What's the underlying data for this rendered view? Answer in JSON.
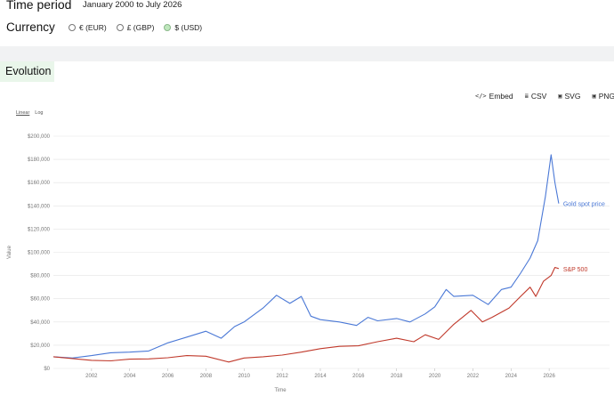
{
  "filters": {
    "time_period_label": "Time period",
    "time_period_value": "January 2000 to July 2026",
    "currency_label": "Currency",
    "currency_options": [
      {
        "label": "€ (EUR)",
        "selected": false
      },
      {
        "label": "£ (GBP)",
        "selected": false
      },
      {
        "label": "$ (USD)",
        "selected": true
      }
    ]
  },
  "section": {
    "tab_label": "Evolution"
  },
  "toolbar": [
    {
      "icon": "code-icon",
      "glyph": "</>",
      "label": "Embed"
    },
    {
      "icon": "database-icon",
      "glyph": "≣",
      "label": "CSV"
    },
    {
      "icon": "image-icon",
      "glyph": "▣",
      "label": "SVG"
    },
    {
      "icon": "image-icon",
      "glyph": "▣",
      "label": "PNG"
    }
  ],
  "scale_toggle": {
    "linear": "Linear",
    "log": "Log",
    "active": "linear"
  },
  "chart_data": {
    "type": "line",
    "xlabel": "Time",
    "ylabel": "Value",
    "xlim": [
      2000,
      2026.6
    ],
    "ylim": [
      0,
      200000
    ],
    "x_ticks": [
      "2002",
      "2004",
      "2006",
      "2008",
      "2010",
      "2012",
      "2014",
      "2016",
      "2018",
      "2020",
      "2022",
      "2024",
      "2026"
    ],
    "y_ticks": [
      "$0",
      "$20,000",
      "$40,000",
      "$60,000",
      "$80,000",
      "$100,000",
      "$120,000",
      "$140,000",
      "$160,000",
      "$180,000",
      "$200,000"
    ],
    "grid": true,
    "series": [
      {
        "name": "Gold spot price",
        "color": "#4a78d6",
        "points": [
          [
            2000,
            10000
          ],
          [
            2001,
            9000
          ],
          [
            2002,
            11000
          ],
          [
            2003,
            13500
          ],
          [
            2004,
            14000
          ],
          [
            2005,
            15000
          ],
          [
            2006,
            22000
          ],
          [
            2007,
            27000
          ],
          [
            2008,
            32000
          ],
          [
            2008.8,
            26000
          ],
          [
            2009.5,
            36000
          ],
          [
            2010,
            40000
          ],
          [
            2011,
            52000
          ],
          [
            2011.7,
            63000
          ],
          [
            2012.4,
            56000
          ],
          [
            2013,
            62000
          ],
          [
            2013.5,
            45000
          ],
          [
            2014,
            42000
          ],
          [
            2015,
            40000
          ],
          [
            2015.9,
            37000
          ],
          [
            2016.5,
            44000
          ],
          [
            2017,
            41000
          ],
          [
            2018,
            43000
          ],
          [
            2018.7,
            40000
          ],
          [
            2019.5,
            47000
          ],
          [
            2020,
            53000
          ],
          [
            2020.6,
            68000
          ],
          [
            2021,
            62000
          ],
          [
            2022,
            63000
          ],
          [
            2022.8,
            55000
          ],
          [
            2023.5,
            68000
          ],
          [
            2024,
            70000
          ],
          [
            2024.5,
            82000
          ],
          [
            2025,
            95000
          ],
          [
            2025.4,
            110000
          ],
          [
            2025.8,
            148000
          ],
          [
            2026.1,
            184000
          ],
          [
            2026.3,
            160000
          ],
          [
            2026.5,
            142000
          ]
        ]
      },
      {
        "name": "S&P 500",
        "color": "#c0392b",
        "points": [
          [
            2000,
            10000
          ],
          [
            2001,
            8500
          ],
          [
            2002,
            7000
          ],
          [
            2003,
            6500
          ],
          [
            2004,
            8000
          ],
          [
            2005,
            8200
          ],
          [
            2006,
            9200
          ],
          [
            2007,
            11000
          ],
          [
            2008,
            10500
          ],
          [
            2009.2,
            5500
          ],
          [
            2010,
            9000
          ],
          [
            2011,
            10000
          ],
          [
            2012,
            11500
          ],
          [
            2013,
            14000
          ],
          [
            2014,
            17000
          ],
          [
            2015,
            19000
          ],
          [
            2016,
            19500
          ],
          [
            2017,
            23000
          ],
          [
            2018,
            26000
          ],
          [
            2018.9,
            23000
          ],
          [
            2019.5,
            29000
          ],
          [
            2020.2,
            25000
          ],
          [
            2021,
            38000
          ],
          [
            2021.9,
            50000
          ],
          [
            2022.5,
            40000
          ],
          [
            2023,
            44000
          ],
          [
            2023.9,
            52000
          ],
          [
            2024.5,
            62000
          ],
          [
            2025,
            70000
          ],
          [
            2025.3,
            62000
          ],
          [
            2025.7,
            75000
          ],
          [
            2026.1,
            80000
          ],
          [
            2026.3,
            87000
          ],
          [
            2026.5,
            86000
          ]
        ]
      }
    ]
  }
}
